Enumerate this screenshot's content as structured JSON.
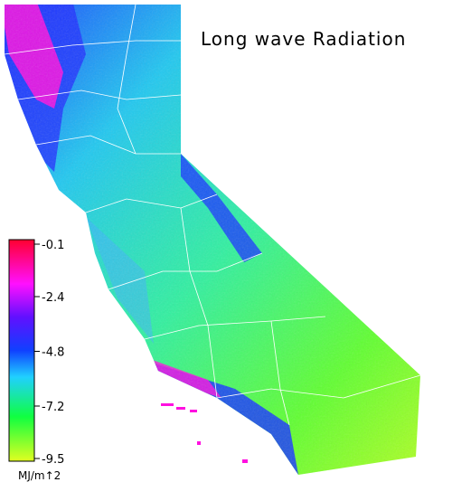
{
  "title": "Long wave Radiation",
  "colorbar": {
    "label": "MJ/m↑2",
    "lim": [
      -9.5,
      -0.1
    ],
    "ticks": [
      -0.1,
      -2.4,
      -4.8,
      -7.2,
      -9.5
    ]
  }
}
